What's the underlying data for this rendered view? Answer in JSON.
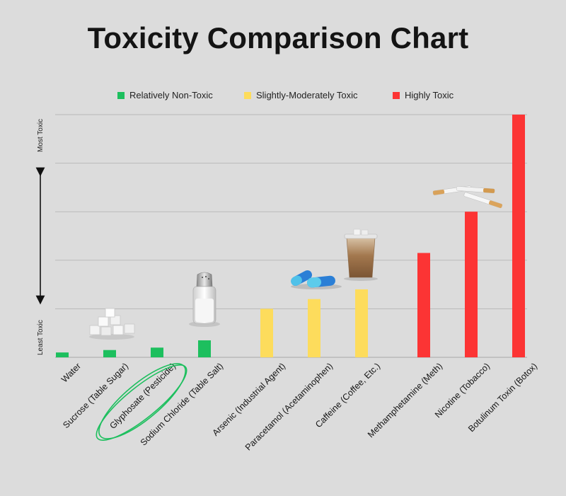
{
  "chart_data": {
    "type": "bar",
    "title": "Toxicity Comparison Chart",
    "xlabel": "",
    "ylabel": "",
    "y_axis_labels": {
      "top": "Most Toxic",
      "bottom": "Least Toxic"
    },
    "ylim": [
      0,
      100
    ],
    "grid": true,
    "legend_position": "top",
    "legend": [
      {
        "name": "Relatively Non-Toxic",
        "color": "#1dbf5e"
      },
      {
        "name": "Slightly-Moderately Toxic",
        "color": "#fddc5c"
      },
      {
        "name": "Highly Toxic",
        "color": "#fc3434"
      }
    ],
    "categories": [
      "Water",
      "Sucrose (Table Sugar)",
      "Glyphosate (Pesticide)",
      "Sodium Chloride (Table Salt)",
      "Arsenic (Industrial Agent)",
      "Paracetamol (Acetaminophen)",
      "Caffeine (Coffee, Etc.)",
      "Methamphetamine (Meth)",
      "Nicotine (Tobacco)",
      "Botulinum Toxin (Botox)"
    ],
    "values": [
      2,
      3,
      4,
      7,
      20,
      24,
      28,
      43,
      60,
      100
    ],
    "category_groups": [
      0,
      0,
      0,
      0,
      1,
      1,
      1,
      2,
      2,
      2
    ],
    "highlighted_category": "Glyphosate (Pesticide)",
    "highlight_color": "#1dbf5e",
    "images": [
      "sugar-cubes-icon",
      "salt-shaker-icon",
      "capsules-icon",
      "iced-coffee-icon",
      "cigarettes-icon"
    ]
  }
}
